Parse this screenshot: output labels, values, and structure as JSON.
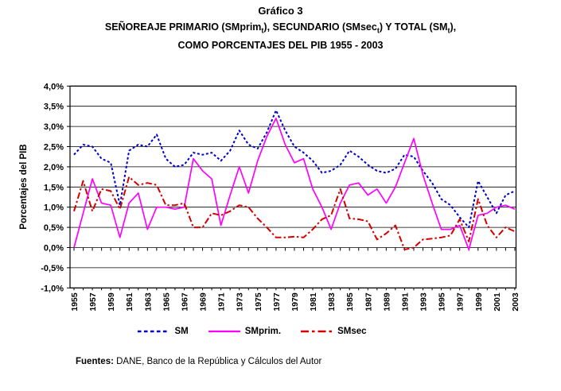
{
  "title": {
    "line1": "Gráfico 3",
    "line2": "SEÑOREAJE PRIMARIO (SMprim{t}), SECUNDARIO (SMsec{t}) Y TOTAL (SM{t}),",
    "line3": "COMO PORCENTAJES DEL PIB 1955 - 2003"
  },
  "source": {
    "prefix": "Fuentes:",
    "text": " DANE, Banco de la República y Cálculos del Autor"
  },
  "legend": {
    "items": [
      {
        "label": "SM"
      },
      {
        "label": "SMprim."
      },
      {
        "label": "SMsec"
      }
    ]
  },
  "chart_data": {
    "type": "line",
    "title": "Gráfico 3 — Señoreaje primario, secundario y total como porcentajes del PIB 1955-2003",
    "xlabel": "",
    "ylabel": "Porcentajes del PIB",
    "ylim": [
      -1.0,
      4.0
    ],
    "ytick_step": 0.5,
    "grid": true,
    "legend_position": "bottom",
    "ytick_labels": [
      "4,0%",
      "3,5%",
      "3,0%",
      "2,5%",
      "2,0%",
      "1,5%",
      "1,0%",
      "0,5%",
      "0,0%",
      "-0,5%",
      "-1,0%"
    ],
    "xtick_labels": [
      "1955",
      "1957",
      "1959",
      "1961",
      "1963",
      "1965",
      "1967",
      "1969",
      "1971",
      "1973",
      "1975",
      "1977",
      "1979",
      "1981",
      "1983",
      "1985",
      "1987",
      "1989",
      "1991",
      "1993",
      "1995",
      "1997",
      "1999",
      "2001",
      "2003"
    ],
    "x": [
      1955,
      1956,
      1957,
      1958,
      1959,
      1960,
      1961,
      1962,
      1963,
      1964,
      1965,
      1966,
      1967,
      1968,
      1969,
      1970,
      1971,
      1972,
      1973,
      1974,
      1975,
      1976,
      1977,
      1978,
      1979,
      1980,
      1981,
      1982,
      1983,
      1984,
      1985,
      1986,
      1987,
      1988,
      1989,
      1990,
      1991,
      1992,
      1993,
      1994,
      1995,
      1996,
      1997,
      1998,
      1999,
      2000,
      2001,
      2002,
      2003
    ],
    "series": [
      {
        "name": "SM",
        "color": "#0000CC",
        "style": "dashed",
        "values": [
          2.3,
          2.55,
          2.5,
          2.2,
          2.1,
          1.05,
          2.4,
          2.55,
          2.5,
          2.8,
          2.2,
          2.0,
          2.05,
          2.35,
          2.3,
          2.35,
          2.15,
          2.4,
          2.9,
          2.55,
          2.45,
          2.85,
          3.4,
          2.9,
          2.5,
          2.35,
          2.15,
          1.85,
          1.9,
          2.05,
          2.4,
          2.25,
          2.05,
          1.9,
          1.85,
          1.95,
          2.3,
          2.25,
          1.9,
          1.6,
          1.2,
          1.05,
          0.75,
          0.5,
          1.65,
          1.25,
          0.85,
          1.3,
          1.4
        ]
      },
      {
        "name": "SMprim.",
        "color": "#FF00FF",
        "style": "solid",
        "values": [
          0.0,
          0.85,
          1.7,
          1.1,
          1.05,
          0.25,
          1.1,
          1.35,
          0.45,
          1.0,
          1.0,
          0.95,
          1.0,
          2.2,
          1.9,
          1.7,
          0.55,
          1.3,
          2.0,
          1.35,
          2.15,
          2.75,
          3.2,
          2.55,
          2.1,
          2.2,
          1.45,
          1.0,
          0.45,
          1.1,
          1.55,
          1.6,
          1.3,
          1.45,
          1.1,
          1.5,
          2.1,
          2.7,
          1.8,
          1.1,
          0.45,
          0.45,
          0.55,
          -0.05,
          0.8,
          0.85,
          1.0,
          1.05,
          0.95
        ]
      },
      {
        "name": "SMsec",
        "color": "#D40000",
        "style": "dash-dot",
        "values": [
          0.9,
          1.65,
          0.9,
          1.45,
          1.4,
          0.95,
          1.75,
          1.55,
          1.6,
          1.55,
          1.05,
          1.05,
          1.1,
          0.5,
          0.5,
          0.85,
          0.8,
          0.9,
          1.05,
          1.0,
          0.72,
          0.5,
          0.25,
          0.25,
          0.27,
          0.25,
          0.45,
          0.7,
          0.8,
          1.45,
          0.72,
          0.7,
          0.65,
          0.2,
          0.35,
          0.55,
          -0.05,
          0.0,
          0.2,
          0.22,
          0.25,
          0.3,
          0.7,
          0.15,
          1.2,
          0.55,
          0.25,
          0.5,
          0.4
        ]
      }
    ]
  }
}
